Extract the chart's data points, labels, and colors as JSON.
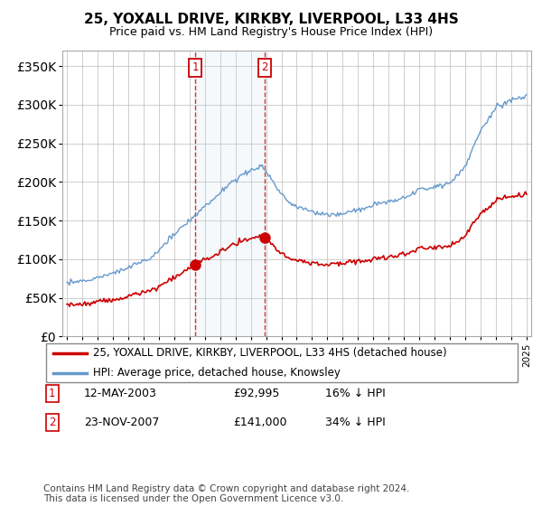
{
  "title": "25, YOXALL DRIVE, KIRKBY, LIVERPOOL, L33 4HS",
  "subtitle": "Price paid vs. HM Land Registry's House Price Index (HPI)",
  "legend_line1": "25, YOXALL DRIVE, KIRKBY, LIVERPOOL, L33 4HS (detached house)",
  "legend_line2": "HPI: Average price, detached house, Knowsley",
  "transaction1_date": "12-MAY-2003",
  "transaction1_price": "£92,995",
  "transaction1_hpi": "16% ↓ HPI",
  "transaction1_year": 2003.37,
  "transaction1_value": 92995,
  "transaction2_date": "23-NOV-2007",
  "transaction2_price": "£141,000",
  "transaction2_hpi": "34% ↓ HPI",
  "transaction2_year": 2007.9,
  "transaction2_value": 141000,
  "hpi_color": "#6699cc",
  "price_color": "#cc0000",
  "vline_color": "#cc0000",
  "shade_color": "#ddeeff",
  "annotation_box_color": "#cc0000",
  "ylim_min": 0,
  "ylim_max": 370000,
  "footer": "Contains HM Land Registry data © Crown copyright and database right 2024.\nThis data is licensed under the Open Government Licence v3.0."
}
